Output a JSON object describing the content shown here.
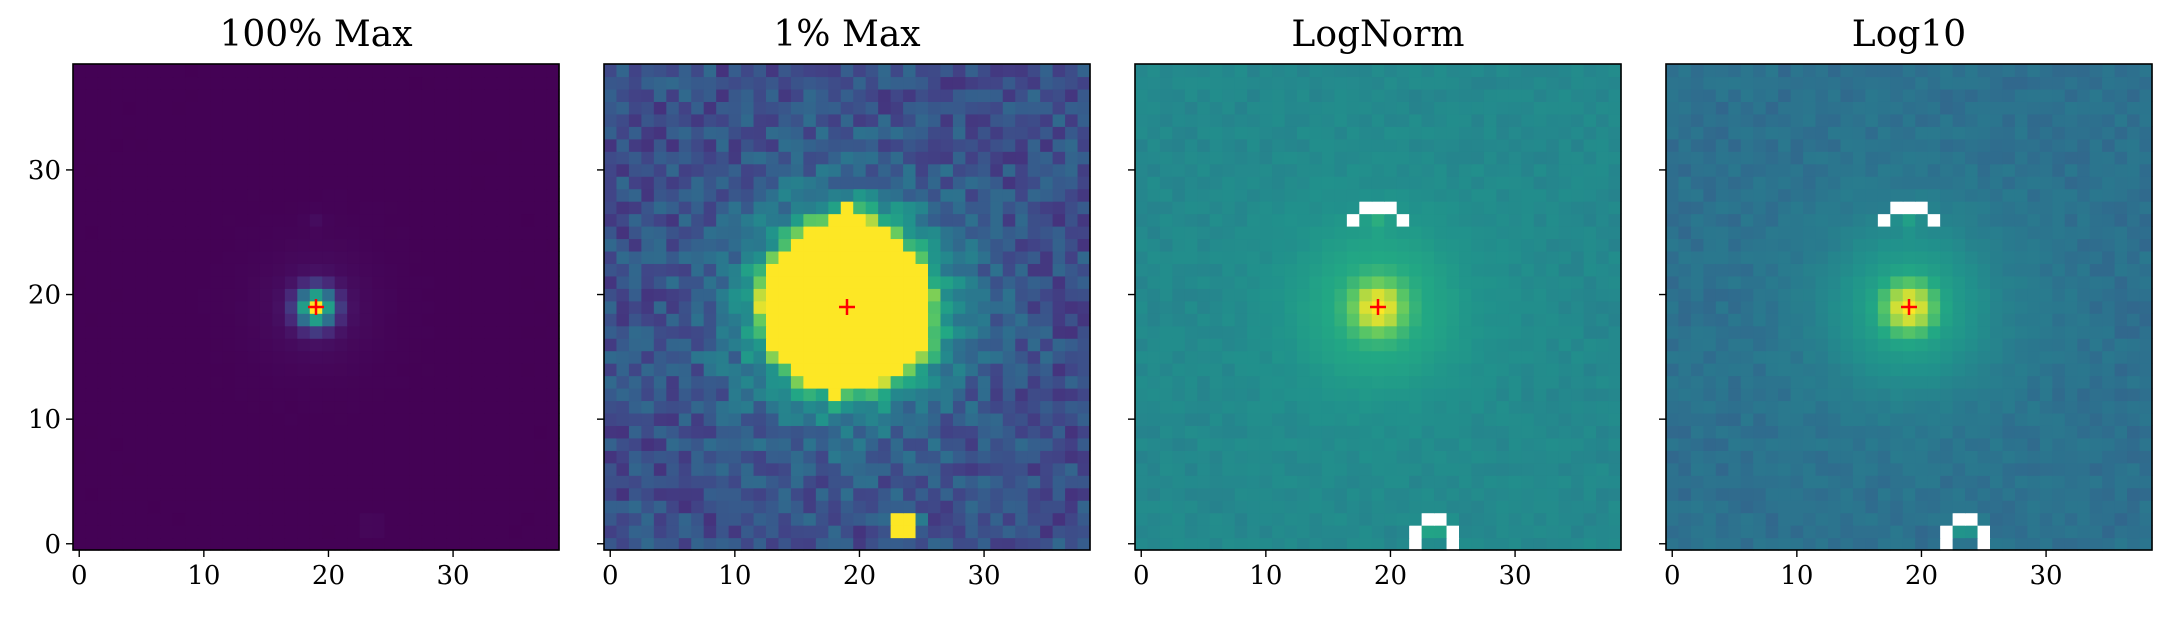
{
  "figure": {
    "colormap": "viridis",
    "marker_color": "#ff0000",
    "masked_color": "#ffffff",
    "background": "#ffffff"
  },
  "chart_data": [
    {
      "type": "heatmap",
      "title": "100% Max",
      "scale": "linear",
      "vmax_fraction": 1.0,
      "xlim": [
        -0.5,
        38.5
      ],
      "ylim": [
        -0.5,
        38.5
      ],
      "xticks": [
        "0",
        "10",
        "20",
        "30"
      ],
      "yticks": [
        "0",
        "10",
        "20",
        "30"
      ],
      "show_ytick_labels": true,
      "marker": {
        "x": 19,
        "y": 19,
        "symbol": "+"
      },
      "grid_size": 39
    },
    {
      "type": "heatmap",
      "title": "1% Max",
      "scale": "linear",
      "vmax_fraction": 0.01,
      "xlim": [
        -0.5,
        38.5
      ],
      "ylim": [
        -0.5,
        38.5
      ],
      "xticks": [
        "0",
        "10",
        "20",
        "30"
      ],
      "yticks": [
        "0",
        "10",
        "20",
        "30"
      ],
      "show_ytick_labels": false,
      "marker": {
        "x": 19,
        "y": 19,
        "symbol": "+"
      },
      "grid_size": 39
    },
    {
      "type": "heatmap",
      "title": "LogNorm",
      "scale": "log",
      "xlim": [
        -0.5,
        38.5
      ],
      "ylim": [
        -0.5,
        38.5
      ],
      "xticks": [
        "0",
        "10",
        "20",
        "30"
      ],
      "yticks": [
        "0",
        "10",
        "20",
        "30"
      ],
      "show_ytick_labels": false,
      "marker": {
        "x": 19,
        "y": 19,
        "symbol": "+"
      },
      "grid_size": 39
    },
    {
      "type": "heatmap",
      "title": "Log10",
      "scale": "log10",
      "xlim": [
        -0.5,
        38.5
      ],
      "ylim": [
        -0.5,
        38.5
      ],
      "xticks": [
        "0",
        "10",
        "20",
        "30"
      ],
      "yticks": [
        "0",
        "10",
        "20",
        "30"
      ],
      "show_ytick_labels": false,
      "marker": {
        "x": 19,
        "y": 19,
        "symbol": "+"
      },
      "grid_size": 39
    }
  ]
}
